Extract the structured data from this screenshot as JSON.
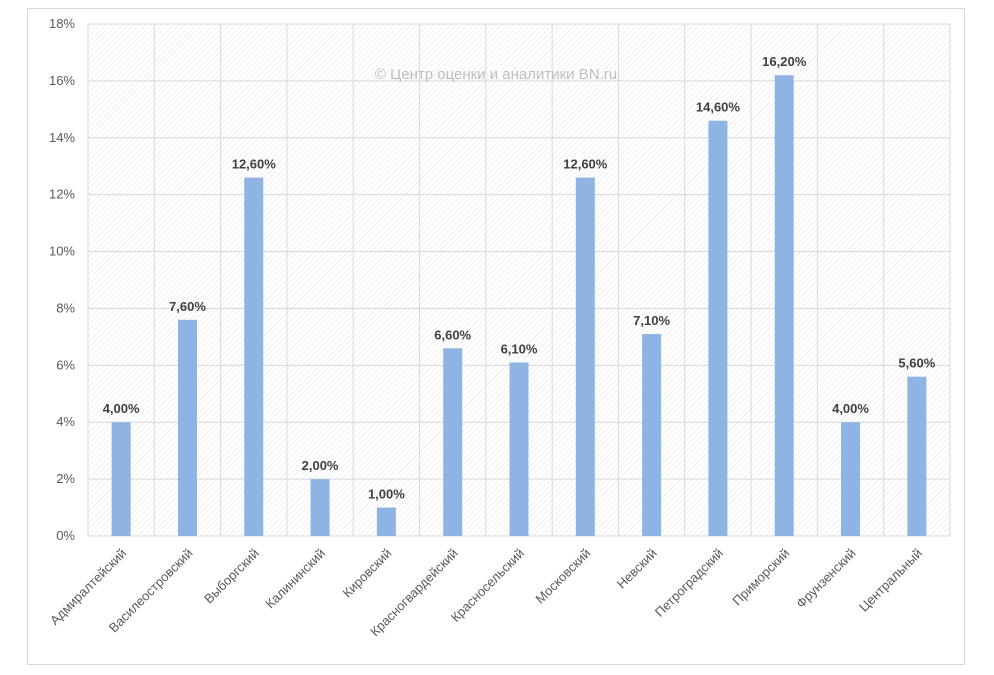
{
  "chart_data": {
    "type": "bar",
    "categories": [
      "Адмиралтейский",
      "Василеостровский",
      "Выборгский",
      "Калининский",
      "Кировский",
      "Красногвардейский",
      "Красносельский",
      "Московский",
      "Невский",
      "Петроградский",
      "Приморский",
      "Фрунзенский",
      "Центральный"
    ],
    "values": [
      4.0,
      7.6,
      12.6,
      2.0,
      1.0,
      6.6,
      6.1,
      12.6,
      7.1,
      14.6,
      16.2,
      4.0,
      5.6
    ],
    "data_labels": [
      "4,00%",
      "7,60%",
      "12,60%",
      "2,00%",
      "1,00%",
      "6,60%",
      "6,10%",
      "12,60%",
      "7,10%",
      "14,60%",
      "16,20%",
      "4,00%",
      "5,60%"
    ],
    "ylim": [
      0,
      18
    ],
    "yticks": [
      0,
      2,
      4,
      6,
      8,
      10,
      12,
      14,
      16,
      18
    ],
    "ytick_labels": [
      "0%",
      "2%",
      "4%",
      "6%",
      "8%",
      "10%",
      "12%",
      "14%",
      "16%",
      "18%"
    ],
    "title": "",
    "xlabel": "",
    "ylabel": "",
    "grid": true,
    "legend": "none",
    "bar_color": "#8eb4e3",
    "watermark": "© Центр оценки и аналитики BN.ru"
  }
}
